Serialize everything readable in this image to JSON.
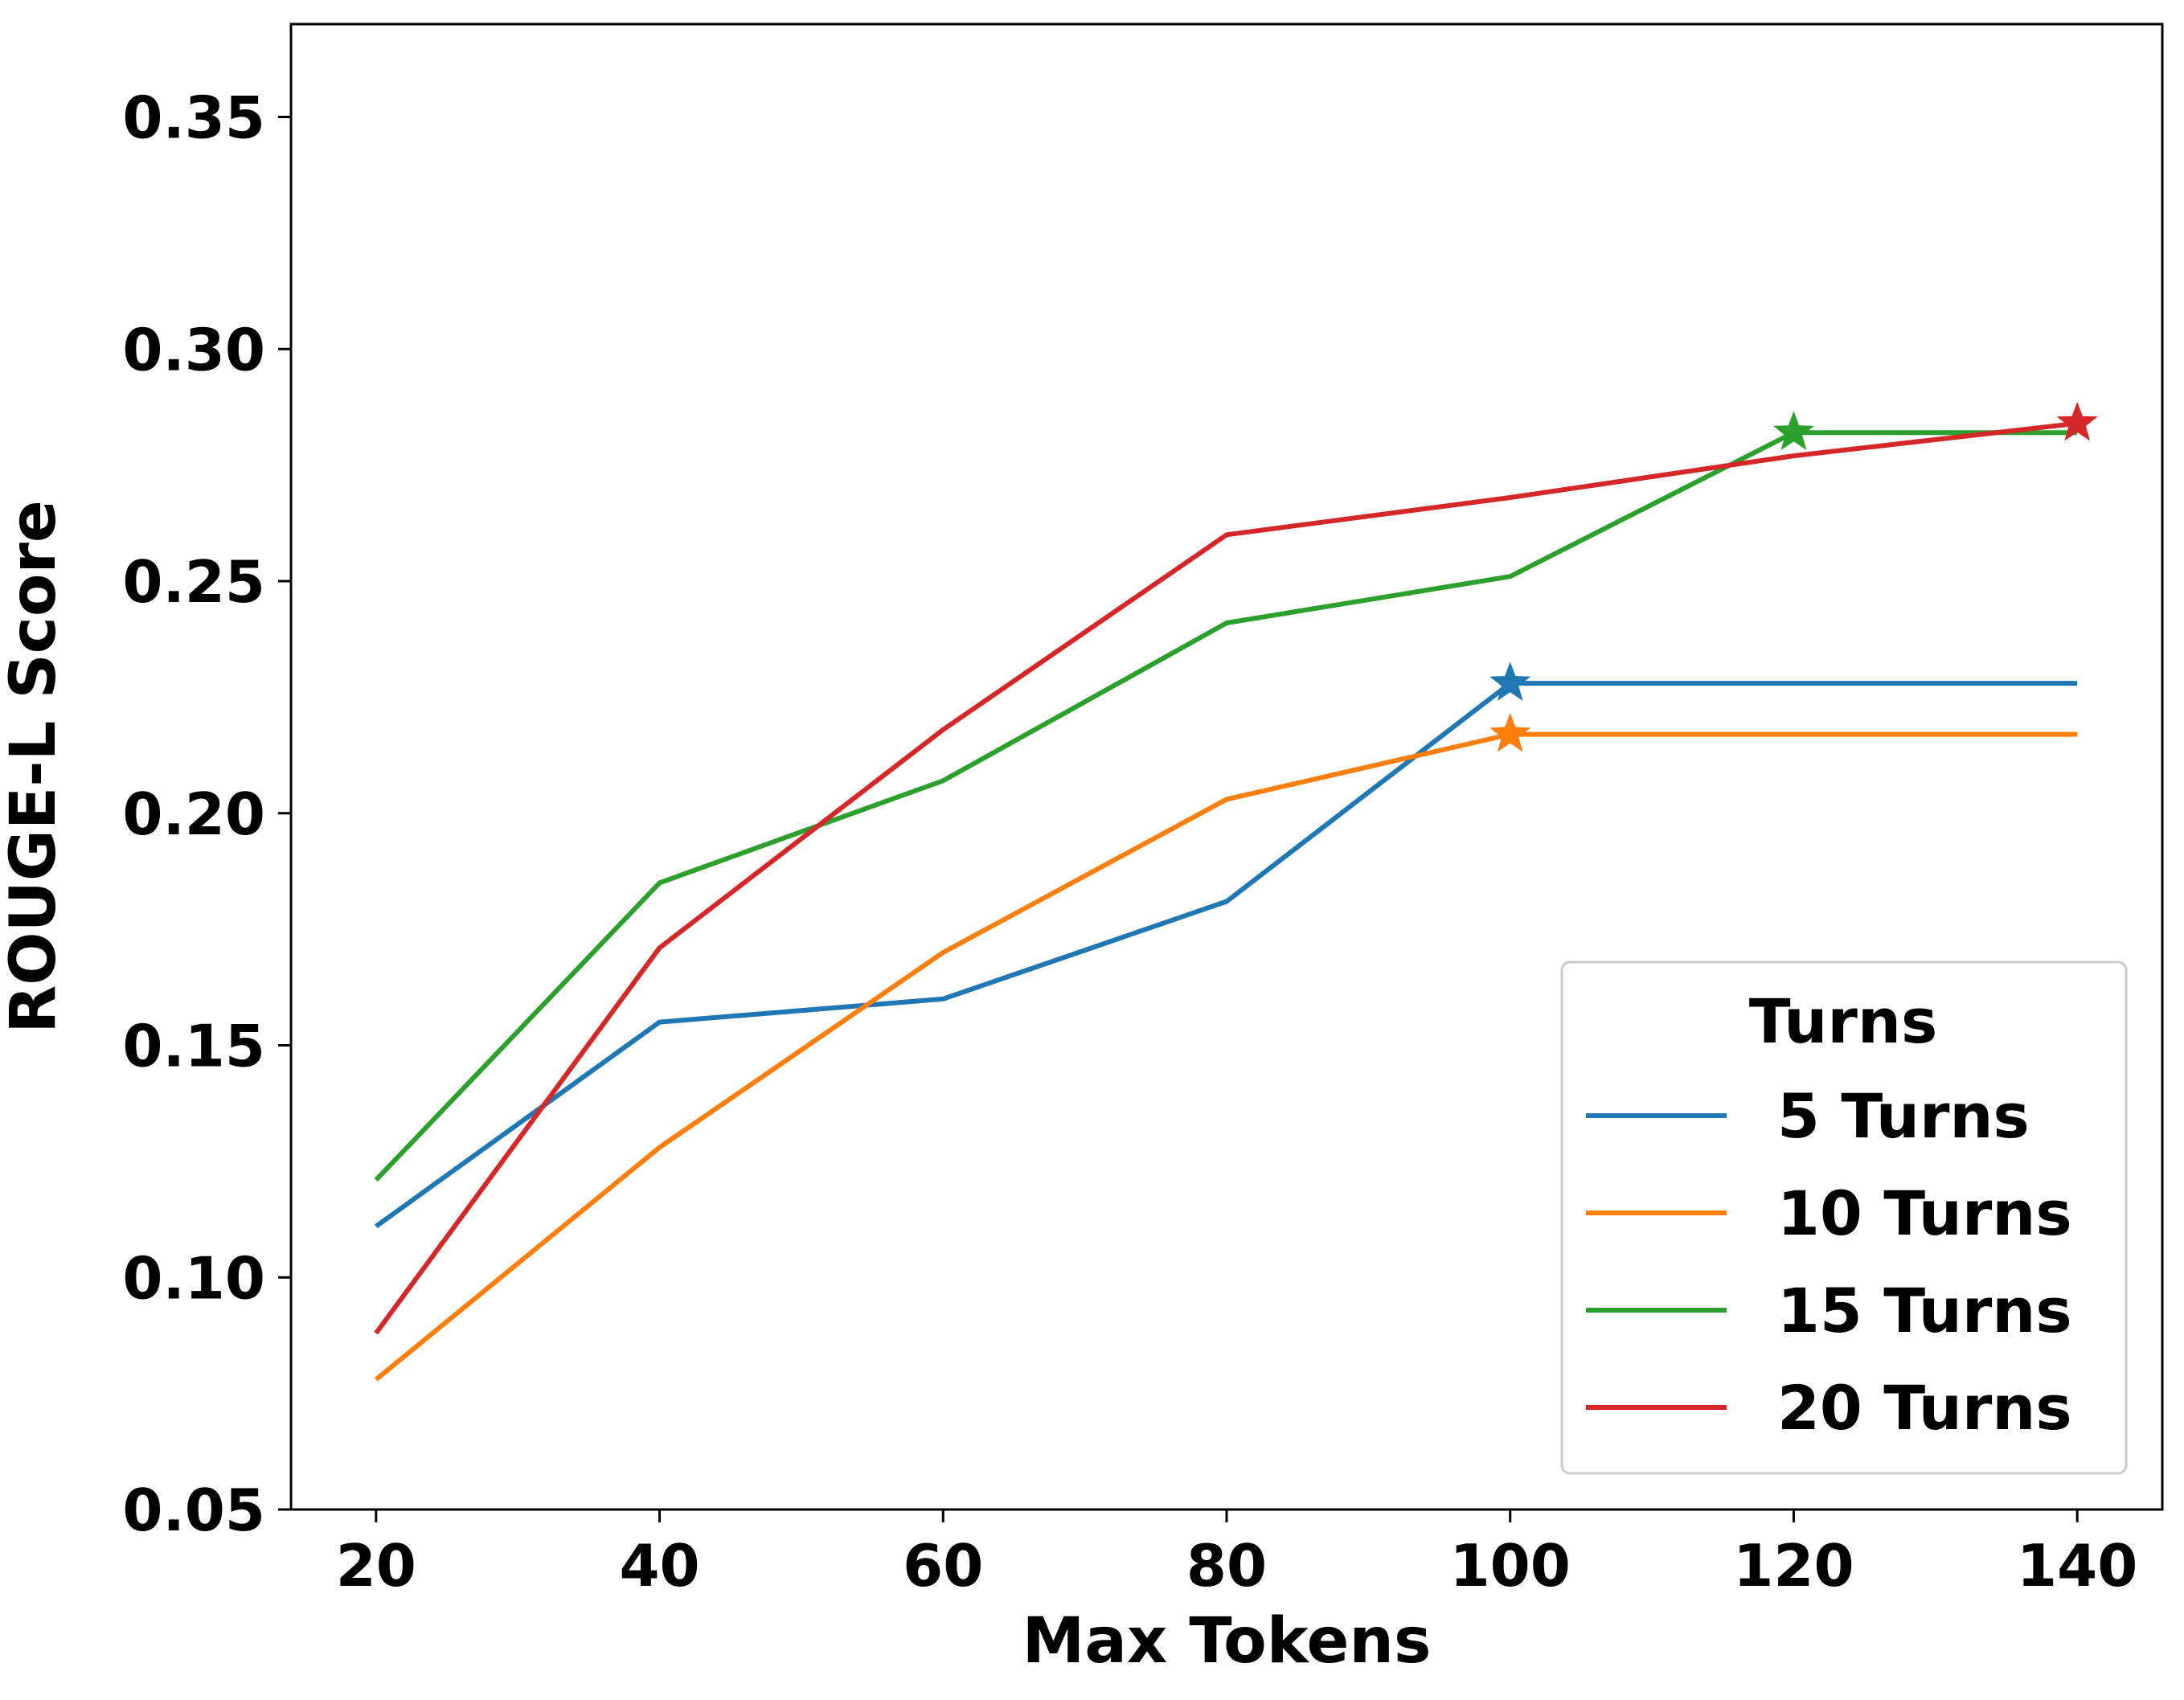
{
  "chart_data": {
    "type": "line",
    "title": "",
    "xlabel": "Max Tokens",
    "ylabel": "ROUGE-L Score",
    "x": [
      20,
      40,
      60,
      80,
      100,
      120,
      140
    ],
    "x_ticks": [
      20,
      40,
      60,
      80,
      100,
      120,
      140
    ],
    "y_ticks": [
      0.05,
      0.1,
      0.15,
      0.2,
      0.25,
      0.3,
      0.35
    ],
    "y_tick_labels": [
      "0.05",
      "0.10",
      "0.15",
      "0.20",
      "0.25",
      "0.30",
      "0.35"
    ],
    "xlim": [
      14,
      146
    ],
    "ylim": [
      0.05,
      0.37
    ],
    "grid": false,
    "legend": {
      "title": "Turns",
      "location": "lower-right"
    },
    "series": [
      {
        "name": "5 Turns",
        "color": "#1f77b4",
        "values": [
          0.111,
          0.155,
          0.16,
          0.181,
          0.228,
          0.228,
          0.228
        ],
        "best_marker": {
          "x": 100,
          "y": 0.228,
          "marker": "star"
        }
      },
      {
        "name": "10 Turns",
        "color": "#ff7f0e",
        "values": [
          0.078,
          0.128,
          0.17,
          0.203,
          0.217,
          0.217,
          0.217
        ],
        "best_marker": {
          "x": 100,
          "y": 0.217,
          "marker": "star"
        }
      },
      {
        "name": "15 Turns",
        "color": "#2ca02c",
        "values": [
          0.121,
          0.185,
          0.207,
          0.241,
          0.251,
          0.282,
          0.282
        ],
        "best_marker": {
          "x": 120,
          "y": 0.282,
          "marker": "star"
        }
      },
      {
        "name": "20 Turns",
        "color": "#d62728",
        "values": [
          0.088,
          0.171,
          0.218,
          0.26,
          0.268,
          0.277,
          0.284
        ],
        "best_marker": {
          "x": 140,
          "y": 0.284,
          "marker": "star"
        }
      }
    ]
  }
}
